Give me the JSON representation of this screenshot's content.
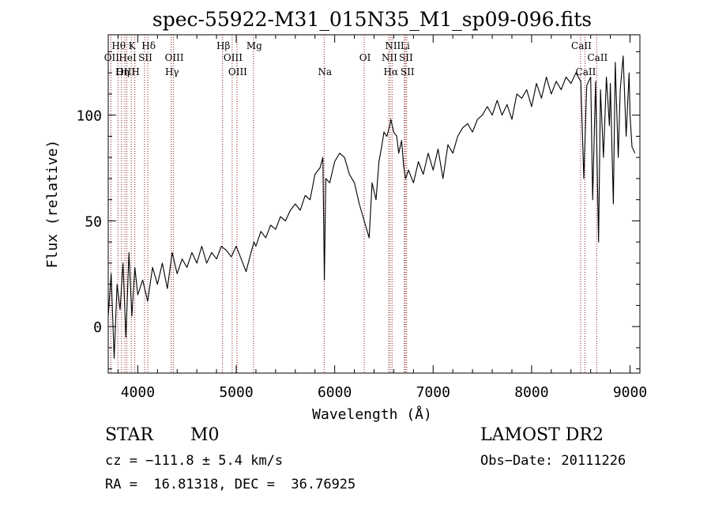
{
  "chart_data": {
    "type": "line",
    "title": "spec-55922-M31_015N35_M1_sp09-096.fits",
    "xlabel": "Wavelength (Å)",
    "ylabel": "Flux (relative)",
    "xlim": [
      3700,
      9100
    ],
    "ylim": [
      -22,
      138
    ],
    "xticks": [
      4000,
      5000,
      6000,
      7000,
      8000,
      9000
    ],
    "yticks": [
      0,
      50,
      100
    ],
    "series": [
      {
        "x": [
          3700,
          3730,
          3760,
          3790,
          3820,
          3850,
          3880,
          3910,
          3940,
          3970,
          4000,
          4050,
          4100,
          4150,
          4200,
          4250,
          4300,
          4350,
          4400,
          4450,
          4500,
          4550,
          4600,
          4650,
          4700,
          4750,
          4800,
          4850,
          4900,
          4950,
          5000,
          5050,
          5100,
          5150,
          5180,
          5200,
          5250,
          5300,
          5350,
          5400,
          5450,
          5500,
          5550,
          5600,
          5650,
          5700,
          5750,
          5800,
          5850,
          5880,
          5895,
          5910,
          5950,
          6000,
          6050,
          6100,
          6150,
          6200,
          6250,
          6300,
          6350,
          6380,
          6420,
          6450,
          6480,
          6500,
          6530,
          6560,
          6570,
          6600,
          6630,
          6650,
          6680,
          6700,
          6720,
          6750,
          6800,
          6850,
          6900,
          6950,
          7000,
          7050,
          7100,
          7150,
          7200,
          7250,
          7300,
          7350,
          7400,
          7450,
          7500,
          7550,
          7600,
          7650,
          7700,
          7750,
          7800,
          7850,
          7900,
          7950,
          8000,
          8050,
          8100,
          8150,
          8200,
          8250,
          8300,
          8350,
          8400,
          8450,
          8500,
          8530,
          8560,
          8600,
          8620,
          8650,
          8680,
          8700,
          8730,
          8760,
          8790,
          8800,
          8830,
          8850,
          8880,
          8900,
          8930,
          8960,
          8990,
          9000,
          9020,
          9050
        ],
        "y": [
          5,
          25,
          -15,
          20,
          8,
          30,
          -5,
          35,
          5,
          28,
          15,
          22,
          12,
          28,
          20,
          30,
          18,
          35,
          25,
          32,
          28,
          35,
          30,
          38,
          30,
          35,
          32,
          38,
          36,
          33,
          38,
          32,
          26,
          35,
          40,
          38,
          45,
          42,
          48,
          46,
          52,
          50,
          55,
          58,
          55,
          62,
          60,
          72,
          75,
          80,
          22,
          70,
          68,
          78,
          82,
          80,
          72,
          68,
          58,
          50,
          42,
          68,
          60,
          78,
          86,
          92,
          90,
          95,
          98,
          92,
          90,
          82,
          88,
          76,
          70,
          74,
          68,
          78,
          72,
          82,
          74,
          84,
          70,
          86,
          82,
          90,
          94,
          96,
          92,
          98,
          100,
          104,
          100,
          107,
          100,
          105,
          98,
          110,
          108,
          112,
          104,
          115,
          108,
          118,
          110,
          116,
          112,
          118,
          115,
          120,
          116,
          70,
          114,
          118,
          60,
          116,
          40,
          112,
          80,
          118,
          95,
          115,
          58,
          125,
          80,
          112,
          128,
          90,
          120,
          100,
          85,
          82
        ]
      }
    ],
    "annotations": [
      {
        "label": "Hθ",
        "x": 3798,
        "row": 1
      },
      {
        "label": "K",
        "x": 3934,
        "row": 1
      },
      {
        "label": "Hδ",
        "x": 4102,
        "row": 1
      },
      {
        "label": "Hβ",
        "x": 4861,
        "row": 1
      },
      {
        "label": "Mg",
        "x": 5175,
        "row": 1
      },
      {
        "label": "NII",
        "x": 6583,
        "row": 1
      },
      {
        "label": "Li",
        "x": 6708,
        "row": 1
      },
      {
        "label": "CaII",
        "x": 8498,
        "row": 1
      },
      {
        "label": "OII",
        "x": 3727,
        "row": 2
      },
      {
        "label": "HeI",
        "x": 3889,
        "row": 2
      },
      {
        "label": "SII",
        "x": 4069,
        "row": 2
      },
      {
        "label": "OIII",
        "x": 4363,
        "row": 2
      },
      {
        "label": "OIII",
        "x": 4959,
        "row": 2
      },
      {
        "label": "OI",
        "x": 6300,
        "row": 2
      },
      {
        "label": "NII",
        "x": 6548,
        "row": 2
      },
      {
        "label": "SII",
        "x": 6716,
        "row": 2
      },
      {
        "label": "CaII",
        "x": 8662,
        "row": 2
      },
      {
        "label": "OIII",
        "x": 3869,
        "row": 3
      },
      {
        "label": "Hη",
        "x": 3835,
        "row": 3
      },
      {
        "label": "H",
        "x": 3970,
        "row": 3
      },
      {
        "label": "Hγ",
        "x": 4340,
        "row": 3
      },
      {
        "label": "OIII",
        "x": 5007,
        "row": 3
      },
      {
        "label": "Na",
        "x": 5893,
        "row": 3
      },
      {
        "label": "Hα",
        "x": 6563,
        "row": 3
      },
      {
        "label": "SII",
        "x": 6731,
        "row": 3
      },
      {
        "label": "CaII",
        "x": 8542,
        "row": 3
      }
    ],
    "lines_x": [
      3727,
      3798,
      3835,
      3869,
      3889,
      3934,
      3970,
      4069,
      4102,
      4340,
      4363,
      4861,
      4959,
      5007,
      5175,
      5893,
      6300,
      6548,
      6563,
      6583,
      6708,
      6716,
      6731,
      8498,
      8542,
      8662
    ]
  },
  "info": {
    "class": "STAR",
    "subclass": "M0",
    "survey": "LAMOST DR2",
    "cz": "cz = −111.8 ± 5.4 km/s",
    "obs_date": "Obs−Date: 20111226",
    "radec": "RA =  16.81318, DEC =  36.76925"
  }
}
